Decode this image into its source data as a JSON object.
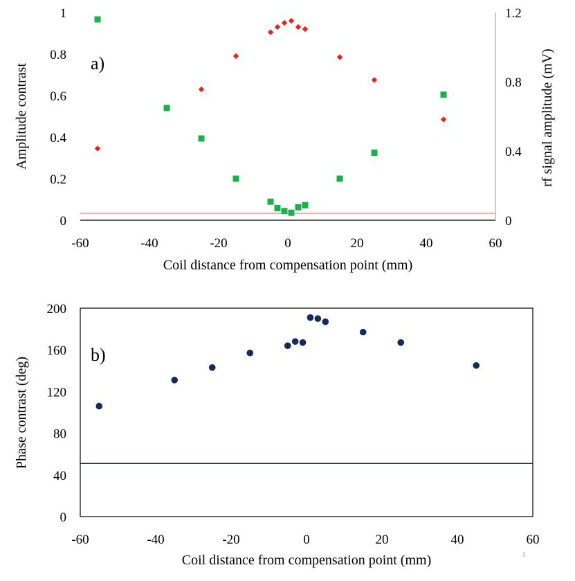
{
  "chart_data": [
    {
      "panel_label": "a)",
      "type": "scatter",
      "xlabel": "Coil distance from compensation point (mm)",
      "ylabel": "Amplitude contrast",
      "y2label": "rf signal amplitude (mV)",
      "xlim": [
        -60,
        60
      ],
      "ylim": [
        0,
        1
      ],
      "y2lim": [
        0,
        1.2
      ],
      "xticks": [
        "-60",
        "-40",
        "-20",
        "0",
        "20",
        "40",
        "60"
      ],
      "yticks": [
        "0",
        "0.2",
        "0.4",
        "0.6",
        "0.8",
        "1"
      ],
      "y2ticks": [
        "0",
        "0.4",
        "0.8",
        "1.2"
      ],
      "series": [
        {
          "name": "Amplitude contrast",
          "axis": "left",
          "marker": "diamond",
          "color": "#e8231e",
          "x": [
            -55,
            -35,
            -25,
            -15,
            -5,
            -3,
            -1,
            1,
            3,
            5,
            15,
            25,
            45
          ],
          "y": [
            0.345,
            0.54,
            0.63,
            0.79,
            0.905,
            0.93,
            0.95,
            0.96,
            0.93,
            0.92,
            0.785,
            0.675,
            0.485
          ]
        },
        {
          "name": "rf signal amplitude",
          "axis": "right",
          "marker": "square",
          "color": "#1bb04a",
          "x": [
            -55,
            -35,
            -25,
            -15,
            -5,
            -3,
            -1,
            1,
            3,
            5,
            15,
            25,
            45
          ],
          "y": [
            1.16,
            0.648,
            0.472,
            0.24,
            0.107,
            0.07,
            0.053,
            0.043,
            0.075,
            0.087,
            0.24,
            0.39,
            0.725
          ]
        }
      ],
      "reference_lines": [
        {
          "axis": "left",
          "y": 0.033,
          "color": "#e89090"
        }
      ]
    },
    {
      "panel_label": "b)",
      "type": "scatter",
      "xlabel": "Coil distance from compensation point (mm)",
      "ylabel": "Phase contrast (deg)",
      "xlim": [
        -60,
        60
      ],
      "ylim": [
        0,
        200
      ],
      "xticks": [
        "-60",
        "-40",
        "-20",
        "0",
        "20",
        "40",
        "60"
      ],
      "yticks": [
        "0",
        "40",
        "80",
        "120",
        "160",
        "200"
      ],
      "series": [
        {
          "name": "Phase contrast",
          "marker": "circle",
          "color": "#132a5c",
          "x": [
            -55,
            -35,
            -25,
            -15,
            -5,
            -3,
            -1,
            1,
            3,
            5,
            15,
            25,
            45
          ],
          "y": [
            106,
            131,
            143,
            157,
            164,
            168,
            167,
            191,
            190,
            187,
            177,
            167,
            145
          ]
        }
      ],
      "reference_lines": [
        {
          "y": 51,
          "color": "#132a5c"
        }
      ]
    }
  ],
  "page_number": "1"
}
